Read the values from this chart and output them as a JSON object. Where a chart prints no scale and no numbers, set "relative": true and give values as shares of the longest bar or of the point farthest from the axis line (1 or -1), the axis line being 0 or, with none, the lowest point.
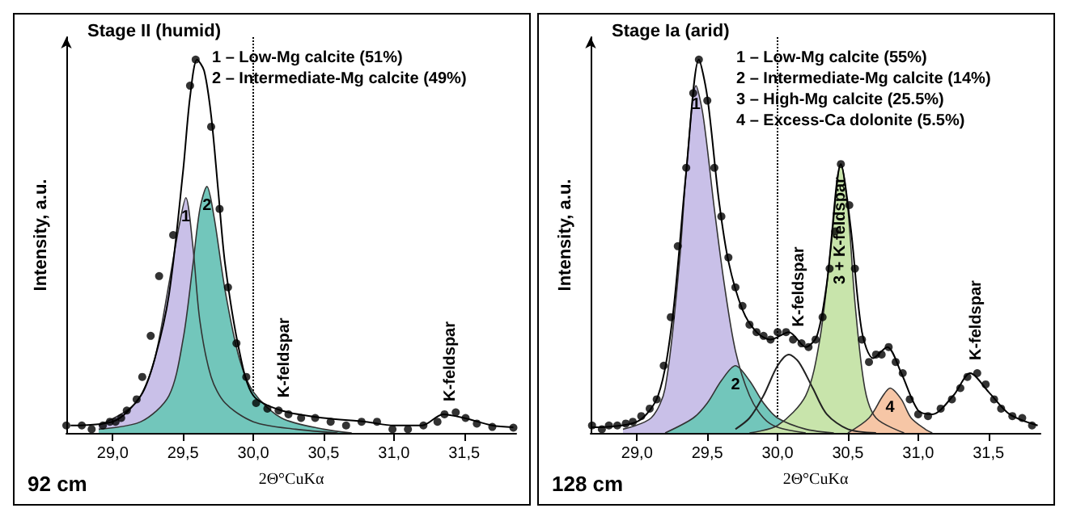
{
  "chart_data": [
    {
      "type": "area",
      "relative": true,
      "title": "Stage II (humid)",
      "xlabel": "2Θ°CuKα",
      "ylabel": "Intensity, a.u.",
      "xlim": [
        28.67,
        31.87
      ],
      "xticks": [
        {
          "value": 29,
          "label": "29,0"
        },
        {
          "value": 29.5,
          "label": "29,5"
        },
        {
          "value": 30,
          "label": "30,0"
        },
        {
          "value": 30.5,
          "label": "30,5"
        },
        {
          "value": 31,
          "label": "31,0"
        },
        {
          "value": 31.5,
          "label": "31,5"
        }
      ],
      "series": [
        {
          "color": "#c9c0e8",
          "x": [
            28.9,
            29.1,
            29.2,
            29.3,
            29.4,
            29.47,
            29.52,
            29.57,
            29.62,
            29.7,
            29.8,
            30.0,
            30.3,
            30.6
          ],
          "values": [
            0.02,
            0.06,
            0.1,
            0.2,
            0.4,
            0.55,
            0.63,
            0.5,
            0.3,
            0.15,
            0.08,
            0.03,
            0.01,
            0
          ]
        },
        {
          "color": "#72c6bb",
          "x": [
            28.9,
            29.2,
            29.4,
            29.5,
            29.57,
            29.62,
            29.67,
            29.72,
            29.8,
            29.9,
            30.0,
            30.2,
            30.5,
            30.7
          ],
          "values": [
            0.01,
            0.03,
            0.1,
            0.25,
            0.45,
            0.6,
            0.66,
            0.58,
            0.38,
            0.2,
            0.11,
            0.04,
            0.01,
            0
          ]
        },
        {
          "type": "line",
          "color": "#000000",
          "x": [
            28.7,
            29.0,
            29.2,
            29.3,
            29.4,
            29.5,
            29.55,
            29.6,
            29.65,
            29.7,
            29.75,
            29.8,
            29.9,
            30.0,
            30.2,
            30.5,
            30.8,
            31.0,
            31.2,
            31.35,
            31.5,
            31.7,
            31.85
          ],
          "values": [
            0.02,
            0.03,
            0.1,
            0.2,
            0.37,
            0.7,
            0.9,
            1.0,
            0.97,
            0.85,
            0.65,
            0.45,
            0.22,
            0.1,
            0.06,
            0.04,
            0.03,
            0.02,
            0.02,
            0.05,
            0.04,
            0.02,
            0.015
          ]
        },
        {
          "type": "scatter",
          "color": "#000000",
          "marker": "circle",
          "x": [
            28.67,
            28.78,
            28.85,
            28.93,
            28.98,
            29.02,
            29.06,
            29.1,
            29.17,
            29.21,
            29.27,
            29.33,
            29.43,
            29.55,
            29.59,
            29.7,
            29.76,
            29.82,
            29.88,
            29.95,
            30.02,
            30.1,
            30.18,
            30.25,
            30.34,
            30.44,
            30.55,
            30.66,
            30.77,
            30.88,
            30.99,
            31.1,
            31.21,
            31.31,
            31.36,
            31.44,
            31.51,
            31.59,
            31.7,
            31.85
          ],
          "values": [
            0.02,
            0.02,
            0.01,
            0.02,
            0.03,
            0.03,
            0.04,
            0.06,
            0.09,
            0.15,
            0.26,
            0.42,
            0.53,
            0.93,
            1.0,
            0.82,
            0.6,
            0.39,
            0.24,
            0.15,
            0.08,
            0.065,
            0.06,
            0.05,
            0.04,
            0.04,
            0.03,
            0.02,
            0.03,
            0.03,
            0.01,
            0.01,
            0.02,
            0.03,
            0.05,
            0.055,
            0.04,
            0.025,
            0.016,
            0.014
          ]
        }
      ],
      "ref_lines": [
        {
          "axis": "x",
          "value": 30,
          "line_style": "dotted",
          "color": "#000000"
        }
      ],
      "annotations": [
        {
          "text": "1",
          "x": 29.52,
          "y": 0.63
        },
        {
          "text": "2",
          "x": 29.67,
          "y": 0.66
        },
        {
          "text": "K-feldspar",
          "x": 30.18,
          "y": 0.06
        },
        {
          "text": "K-feldspar",
          "x": 31.36,
          "y": 0.05
        },
        "1 – Low-Mg calcite (51%)",
        "2 – Intermediate-Mg calcite (49%)",
        "92 cm"
      ]
    },
    {
      "type": "area",
      "relative": true,
      "title": "Stage Ia (arid)",
      "xlabel": "2Θ°CuKα",
      "ylabel": "Intensity, a.u.",
      "xlim": [
        28.67,
        31.87
      ],
      "xticks": [
        {
          "value": 29,
          "label": "29,0"
        },
        {
          "value": 29.5,
          "label": "29,5"
        },
        {
          "value": 30,
          "label": "30,0"
        },
        {
          "value": 30.5,
          "label": "30,5"
        },
        {
          "value": 31,
          "label": "31,0"
        },
        {
          "value": 31.5,
          "label": "31,5"
        }
      ],
      "series": [
        {
          "color": "#c9c0e8",
          "x": [
            28.9,
            29.1,
            29.2,
            29.3,
            29.35,
            29.42,
            29.47,
            29.55,
            29.62,
            29.7,
            29.8,
            29.9,
            30.0,
            30.2
          ],
          "values": [
            0.01,
            0.04,
            0.12,
            0.45,
            0.7,
            0.93,
            0.85,
            0.6,
            0.4,
            0.22,
            0.1,
            0.04,
            0.015,
            0
          ]
        },
        {
          "color": "#72c6bb",
          "x": [
            29.2,
            29.4,
            29.5,
            29.6,
            29.7,
            29.8,
            29.9,
            30.0,
            30.2,
            30.4
          ],
          "values": [
            0,
            0.04,
            0.08,
            0.14,
            0.18,
            0.14,
            0.08,
            0.04,
            0.01,
            0
          ]
        },
        {
          "type": "line",
          "color": "#222222",
          "x": [
            29.7,
            29.8,
            29.9,
            30.0,
            30.08,
            30.15,
            30.25,
            30.35,
            30.5,
            30.7
          ],
          "values": [
            0.01,
            0.04,
            0.1,
            0.18,
            0.21,
            0.19,
            0.12,
            0.05,
            0.01,
            0
          ]
        },
        {
          "color": "#c8e4ab",
          "x": [
            29.8,
            30.0,
            30.2,
            30.3,
            30.38,
            30.45,
            30.5,
            30.55,
            30.62,
            30.7,
            30.9
          ],
          "values": [
            0,
            0.02,
            0.1,
            0.25,
            0.5,
            0.72,
            0.6,
            0.35,
            0.12,
            0.04,
            0
          ]
        },
        {
          "color": "#f6c6a6",
          "x": [
            30.5,
            30.65,
            30.75,
            30.8,
            30.88,
            30.95,
            31.05,
            31.1
          ],
          "values": [
            0,
            0.04,
            0.1,
            0.12,
            0.09,
            0.04,
            0.01,
            0
          ]
        },
        {
          "type": "line",
          "color": "#000000",
          "x": [
            28.68,
            29.0,
            29.15,
            29.25,
            29.35,
            29.44,
            29.5,
            29.58,
            29.65,
            29.75,
            29.85,
            29.95,
            30.08,
            30.2,
            30.28,
            30.35,
            30.45,
            30.52,
            30.6,
            30.68,
            30.78,
            30.88,
            31.0,
            31.1,
            31.25,
            31.37,
            31.5,
            31.65,
            31.85
          ],
          "values": [
            0.015,
            0.03,
            0.1,
            0.3,
            0.7,
            1.0,
            0.9,
            0.63,
            0.46,
            0.33,
            0.27,
            0.25,
            0.27,
            0.23,
            0.26,
            0.4,
            0.72,
            0.55,
            0.27,
            0.2,
            0.23,
            0.16,
            0.06,
            0.05,
            0.1,
            0.16,
            0.11,
            0.05,
            0.02
          ]
        },
        {
          "type": "scatter",
          "color": "#000000",
          "marker": "circle",
          "x": [
            28.68,
            28.75,
            28.8,
            28.86,
            28.92,
            28.97,
            29.03,
            29.09,
            29.14,
            29.19,
            29.24,
            29.29,
            29.35,
            29.4,
            29.44,
            29.5,
            29.55,
            29.6,
            29.65,
            29.7,
            29.75,
            29.8,
            29.85,
            29.9,
            29.95,
            30.0,
            30.06,
            30.11,
            30.17,
            30.22,
            30.27,
            30.32,
            30.37,
            30.41,
            30.45,
            30.51,
            30.55,
            30.6,
            30.65,
            30.7,
            30.74,
            30.79,
            30.84,
            30.89,
            30.94,
            31.0,
            31.07,
            31.16,
            31.24,
            31.3,
            31.35,
            31.42,
            31.48,
            31.54,
            31.59,
            31.67,
            31.74,
            31.81
          ],
          "values": [
            0.02,
            0.01,
            0.02,
            0.02,
            0.025,
            0.03,
            0.045,
            0.065,
            0.09,
            0.18,
            0.31,
            0.5,
            0.71,
            0.91,
            1.0,
            0.89,
            0.71,
            0.58,
            0.47,
            0.39,
            0.34,
            0.29,
            0.27,
            0.26,
            0.25,
            0.27,
            0.27,
            0.25,
            0.24,
            0.23,
            0.25,
            0.31,
            0.44,
            0.54,
            0.72,
            0.61,
            0.44,
            0.25,
            0.19,
            0.21,
            0.21,
            0.23,
            0.19,
            0.16,
            0.09,
            0.05,
            0.045,
            0.065,
            0.09,
            0.12,
            0.15,
            0.16,
            0.13,
            0.09,
            0.065,
            0.045,
            0.04,
            0.02
          ]
        }
      ],
      "ref_lines": [
        {
          "axis": "x",
          "value": 30,
          "line_style": "dotted",
          "color": "#000000"
        }
      ],
      "annotations": [
        {
          "text": "1",
          "x": 29.42,
          "y": 0.93
        },
        {
          "text": "2",
          "x": 29.7,
          "y": 0.18
        },
        {
          "text": "3 + K-feldspar",
          "x": 30.45,
          "y": 0.72
        },
        {
          "text": "4",
          "x": 30.8,
          "y": 0.12
        },
        {
          "text": "K-feldspar",
          "x": 30.11,
          "y": 0.25
        },
        {
          "text": "K-feldspar",
          "x": 31.37,
          "y": 0.16
        },
        "1 – Low-Mg calcite (55%)",
        "2 – Intermediate-Mg calcite (14%)",
        "3 – High-Mg calcite (25.5%)",
        "4 – Excess-Ca dolonite (5.5%)",
        "128 cm"
      ]
    }
  ]
}
